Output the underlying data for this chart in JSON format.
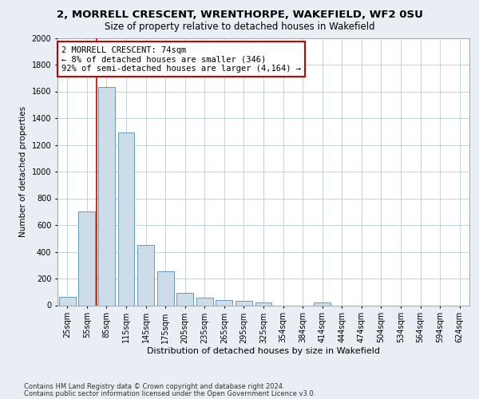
{
  "title1": "2, MORRELL CRESCENT, WRENTHORPE, WAKEFIELD, WF2 0SU",
  "title2": "Size of property relative to detached houses in Wakefield",
  "xlabel": "Distribution of detached houses by size in Wakefield",
  "ylabel": "Number of detached properties",
  "categories": [
    "25sqm",
    "55sqm",
    "85sqm",
    "115sqm",
    "145sqm",
    "175sqm",
    "205sqm",
    "235sqm",
    "265sqm",
    "295sqm",
    "325sqm",
    "354sqm",
    "384sqm",
    "414sqm",
    "444sqm",
    "474sqm",
    "504sqm",
    "534sqm",
    "564sqm",
    "594sqm",
    "624sqm"
  ],
  "values": [
    65,
    700,
    1630,
    1290,
    450,
    255,
    90,
    55,
    40,
    30,
    20,
    0,
    0,
    20,
    0,
    0,
    0,
    0,
    0,
    0,
    0
  ],
  "bar_color": "#ccdce8",
  "bar_edge_color": "#6699bb",
  "vline_x": 1.5,
  "vline_color": "#cc0000",
  "annotation_text": "2 MORRELL CRESCENT: 74sqm\n← 8% of detached houses are smaller (346)\n92% of semi-detached houses are larger (4,164) →",
  "annotation_box_color": "#cc0000",
  "ylim": [
    0,
    2000
  ],
  "yticks": [
    0,
    200,
    400,
    600,
    800,
    1000,
    1200,
    1400,
    1600,
    1800,
    2000
  ],
  "footer1": "Contains HM Land Registry data © Crown copyright and database right 2024.",
  "footer2": "Contains public sector information licensed under the Open Government Licence v3.0.",
  "background_color": "#e8eef4",
  "plot_bg_color": "#ffffff",
  "grid_color": "#b8ccd8",
  "title1_fontsize": 9.5,
  "title2_fontsize": 8.5,
  "xlabel_fontsize": 8,
  "ylabel_fontsize": 7.5,
  "tick_fontsize": 7,
  "footer_fontsize": 6,
  "annotation_fontsize": 7.5
}
